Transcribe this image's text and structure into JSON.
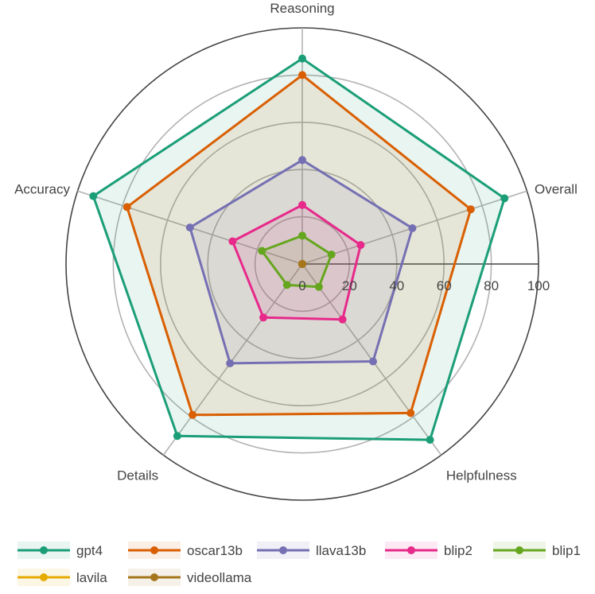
{
  "chart_data": {
    "type": "radar",
    "axes": [
      "Reasoning",
      "Overall",
      "Helpfulness",
      "Details",
      "Accuracy"
    ],
    "radial_ticks": [
      "0",
      "20",
      "40",
      "60",
      "80",
      "100"
    ],
    "rlim": [
      0,
      100
    ],
    "grid": true,
    "legend_position": "bottom",
    "series": [
      {
        "name": "gpt4",
        "color": "#1b9e77",
        "values": [
          87,
          90,
          92,
          90,
          93
        ]
      },
      {
        "name": "oscar13b",
        "color": "#d95f02",
        "values": [
          80,
          75,
          78,
          79,
          78
        ]
      },
      {
        "name": "llava13b",
        "color": "#7570b3",
        "values": [
          44,
          49,
          51,
          52,
          50
        ]
      },
      {
        "name": "blip2",
        "color": "#e7298a",
        "values": [
          25,
          26,
          29,
          28,
          31
        ]
      },
      {
        "name": "blip1",
        "color": "#66a61e",
        "values": [
          12,
          13,
          12,
          11,
          18
        ]
      },
      {
        "name": "lavila",
        "color": "#e6ab02",
        "values": [
          0,
          0,
          0,
          0,
          0
        ]
      },
      {
        "name": "videollama",
        "color": "#a6761d",
        "values": [
          0,
          0,
          0,
          0,
          0
        ]
      }
    ]
  }
}
